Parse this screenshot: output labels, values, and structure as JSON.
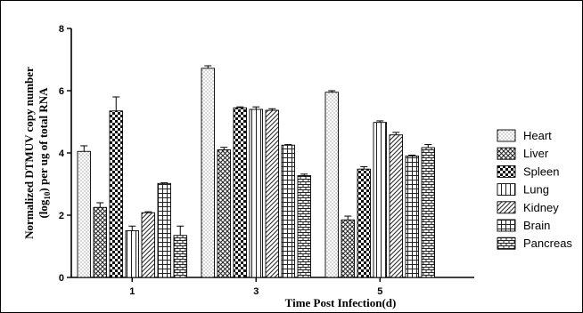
{
  "chart_data": {
    "type": "bar",
    "xlabel": "Time Post Infection(d)",
    "ylabel_line1": "Normalized DTMUV copy number",
    "ylabel_line2_prefix": "(log",
    "ylabel_line2_sub": "10",
    "ylabel_line2_suffix": ") per ug of total RNA",
    "categories": [
      "1",
      "3",
      "5"
    ],
    "ylim": [
      0,
      8
    ],
    "yticks": [
      0,
      2,
      4,
      6,
      8
    ],
    "legend_position": "right",
    "series": [
      {
        "name": "Heart",
        "pattern": "dots",
        "values": [
          4.05,
          6.72,
          5.95
        ],
        "errors": [
          0.18,
          0.08,
          0.05
        ]
      },
      {
        "name": "Liver",
        "pattern": "crosshatch",
        "values": [
          2.25,
          4.1,
          1.85
        ],
        "errors": [
          0.15,
          0.08,
          0.12
        ]
      },
      {
        "name": "Spleen",
        "pattern": "checker",
        "values": [
          5.35,
          5.45,
          3.48
        ],
        "errors": [
          0.45,
          0.03,
          0.08
        ]
      },
      {
        "name": "Lung",
        "pattern": "vlines",
        "values": [
          1.5,
          5.4,
          4.98
        ],
        "errors": [
          0.15,
          0.08,
          0.05
        ]
      },
      {
        "name": "Kidney",
        "pattern": "diagonal",
        "values": [
          2.08,
          5.37,
          4.58
        ],
        "errors": [
          0.03,
          0.05,
          0.08
        ]
      },
      {
        "name": "Brain",
        "pattern": "grid",
        "values": [
          3.02,
          4.25,
          3.9
        ],
        "errors": [
          0.02,
          0.02,
          0.03
        ]
      },
      {
        "name": "Pancreas",
        "pattern": "bricks",
        "values": [
          1.35,
          3.27,
          4.17
        ],
        "errors": [
          0.3,
          0.05,
          0.1
        ]
      }
    ]
  }
}
